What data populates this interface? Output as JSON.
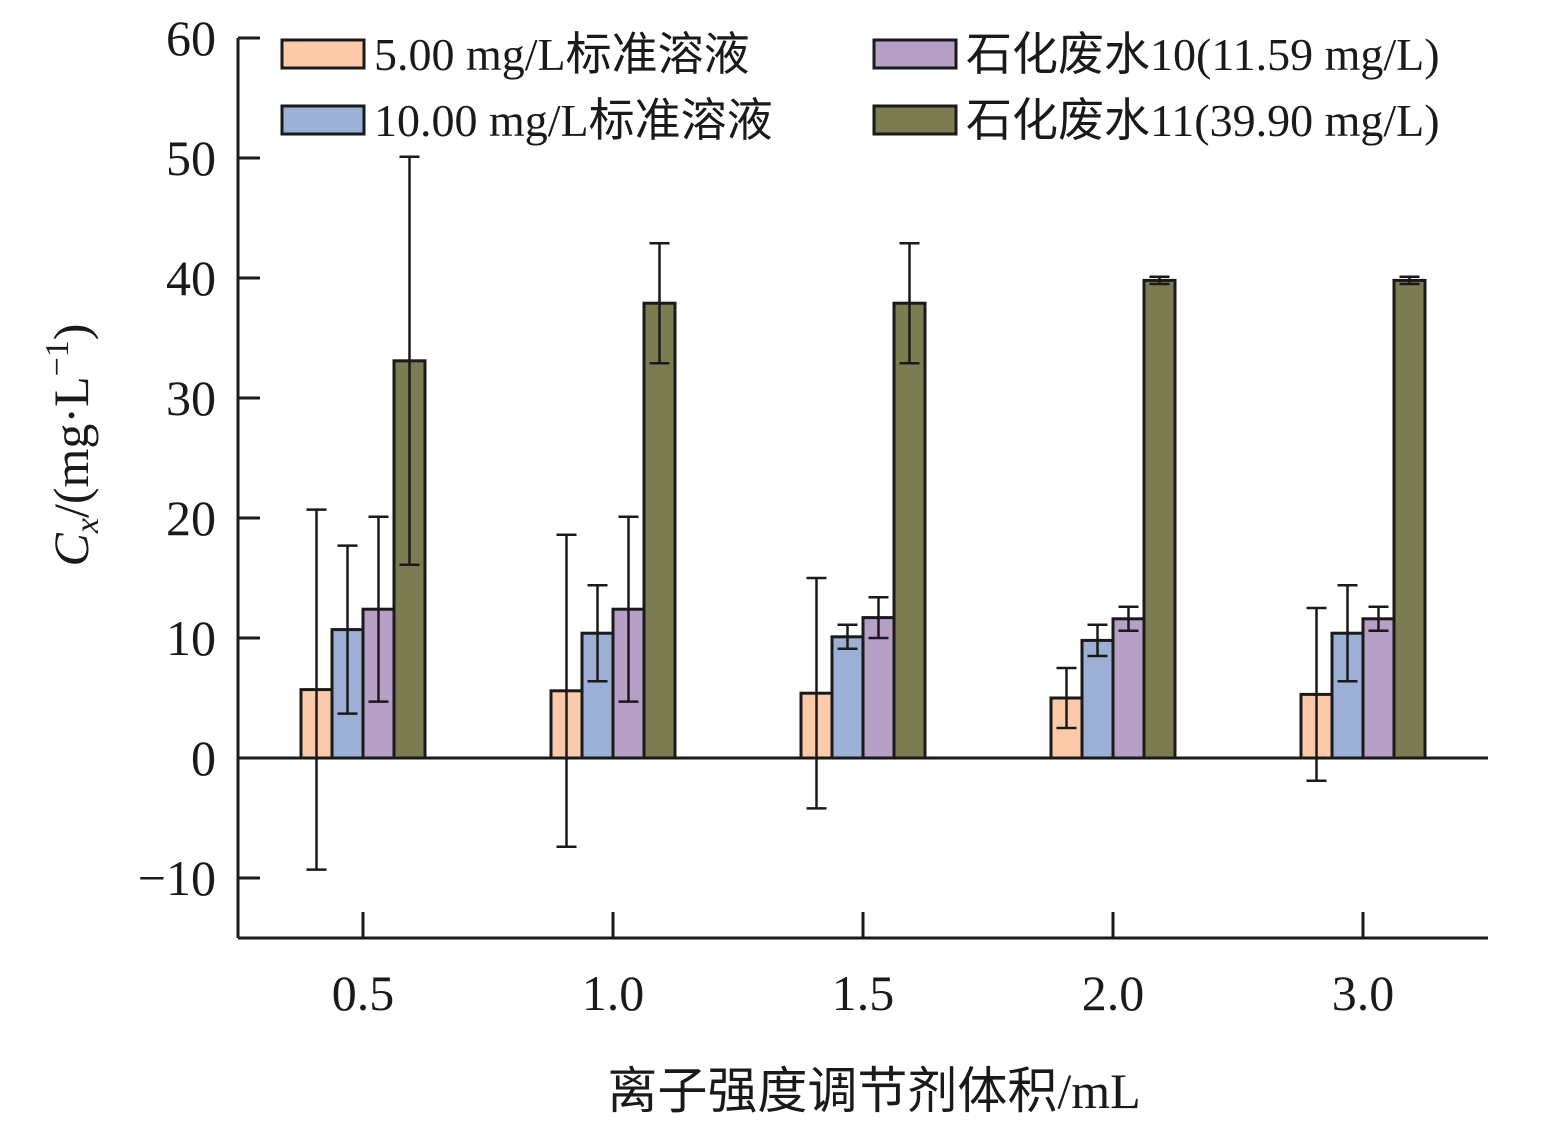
{
  "chart_data": {
    "type": "bar",
    "categories": [
      "0.5",
      "1.0",
      "1.5",
      "2.0",
      "3.0"
    ],
    "xlabel": "离子强度调节剂体积/mL",
    "ylabel": "C",
    "ylabel_sub": "x",
    "ylabel_rest": "/(mg·L",
    "ylabel_sup": "−1",
    "ylabel_close": ")",
    "ylim": [
      -15,
      60
    ],
    "yticks": [
      -10,
      0,
      10,
      20,
      30,
      40,
      50,
      60
    ],
    "ytick_labels": [
      "−10",
      "0",
      "10",
      "20",
      "30",
      "40",
      "50",
      "60"
    ],
    "grid": false,
    "legend_position": "top",
    "series": [
      {
        "name": "5.00 mg/L标准溶液",
        "color": "#fdcaa9",
        "values": [
          5.7,
          5.6,
          5.4,
          5.0,
          5.3
        ],
        "errors": [
          15.0,
          13.0,
          9.6,
          2.5,
          7.2
        ]
      },
      {
        "name": "10.00 mg/L标准溶液",
        "color": "#9cb0d6",
        "values": [
          10.7,
          10.4,
          10.1,
          9.8,
          10.4
        ],
        "errors": [
          7.0,
          4.0,
          1.0,
          1.3,
          4.0
        ]
      },
      {
        "name": "石化废水10(11.59 mg/L)",
        "color": "#b7a0c5",
        "values": [
          12.4,
          12.4,
          11.7,
          11.6,
          11.6
        ],
        "errors": [
          7.7,
          7.7,
          1.7,
          1.0,
          1.0
        ]
      },
      {
        "name": "石化废水11(39.90 mg/L)",
        "color": "#7c7c52",
        "values": [
          33.1,
          37.9,
          37.9,
          39.8,
          39.8
        ],
        "errors": [
          17.0,
          5.0,
          5.0,
          0.3,
          0.3
        ]
      }
    ]
  }
}
